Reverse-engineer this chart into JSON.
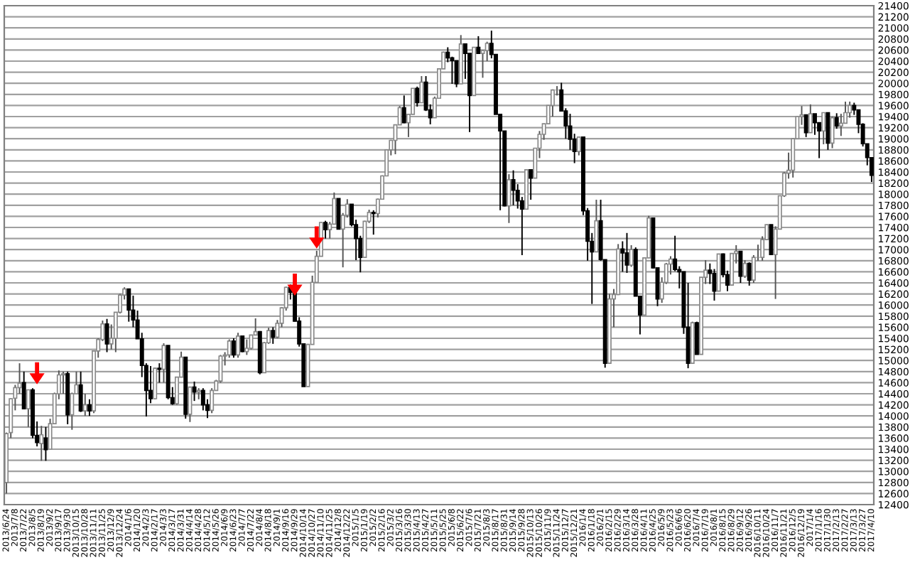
{
  "chart_data": {
    "type": "candlestick",
    "ylim": [
      12400,
      21400
    ],
    "yticks": [
      12400,
      12600,
      12800,
      13000,
      13200,
      13400,
      13600,
      13800,
      14000,
      14200,
      14400,
      14600,
      14800,
      15000,
      15200,
      15400,
      15600,
      15800,
      16000,
      16200,
      16400,
      16600,
      16800,
      17000,
      17200,
      17400,
      17600,
      17800,
      18000,
      18200,
      18400,
      18600,
      18800,
      19000,
      19200,
      19400,
      19600,
      19800,
      20000,
      20200,
      20400,
      20600,
      20800,
      21000,
      21200,
      21400
    ],
    "grid": "y",
    "categories": [
      "2013/6/24",
      null,
      "2013/7/8",
      null,
      "2013/7/22",
      null,
      "2013/8/5",
      null,
      "2013/8/19",
      null,
      "2013/9/2",
      null,
      "2013/9/17",
      null,
      "2013/9/30",
      null,
      "2013/10/15",
      null,
      "2013/10/28",
      null,
      "2013/11/11",
      null,
      "2013/11/25",
      null,
      "2013/12/9",
      null,
      "2013/12/24",
      null,
      "2014/1/6",
      null,
      "2014/1/20",
      null,
      "2014/2/3",
      null,
      "2014/2/17",
      null,
      "2014/3/3",
      null,
      "2014/3/17",
      null,
      "2014/3/31",
      null,
      "2014/4/14",
      null,
      "2014/4/28",
      null,
      "2014/5/12",
      null,
      "2014/5/26",
      null,
      "2014/6/9",
      null,
      "2014/6/23",
      null,
      "2014/7/7",
      null,
      "2014/7/22",
      null,
      "2014/8/4",
      null,
      "2014/8/18",
      null,
      "2014/9/1",
      null,
      "2014/9/16",
      null,
      "2014/9/29",
      null,
      "2014/10/14",
      null,
      "2014/10/27",
      null,
      "2014/11/10",
      null,
      "2014/11/25",
      null,
      "2014/12/8",
      null,
      "2014/12/22",
      null,
      "2015/1/5",
      null,
      "2015/1/19",
      null,
      "2015/2/2",
      null,
      "2015/2/16",
      null,
      "2015/3/2",
      null,
      "2015/3/16",
      null,
      "2015/3/30",
      null,
      "2015/4/13",
      null,
      "2015/4/27",
      null,
      "2015/5/11",
      null,
      "2015/5/25",
      null,
      "2015/6/8",
      null,
      "2015/6/22",
      null,
      "2015/7/6",
      null,
      "2015/7/21",
      null,
      "2015/8/3",
      null,
      "2015/8/17",
      null,
      "2015/8/31",
      null,
      "2015/9/14",
      null,
      "2015/9/28",
      null,
      "2015/10/13",
      null,
      "2015/10/26",
      null,
      "2015/11/9",
      null,
      "2015/11/24",
      null,
      "2015/12/7",
      null,
      "2015/12/21",
      null,
      "2016/1/4",
      null,
      "2016/1/18",
      null,
      "2016/2/1",
      null,
      "2016/2/15",
      null,
      "2016/2/29",
      null,
      "2016/3/14",
      null,
      "2016/3/28",
      null,
      "2016/4/11",
      null,
      "2016/4/25",
      null,
      "2016/5/9",
      null,
      "2016/5/23",
      null,
      "2016/6/6",
      null,
      "2016/6/20",
      null,
      "2016/7/4",
      null,
      "2016/7/19",
      null,
      "2016/8/1",
      null,
      "2016/8/15",
      null,
      "2016/8/29",
      null,
      "2016/9/12",
      null,
      "2016/9/26",
      null,
      "2016/10/11",
      null,
      "2016/10/24",
      null,
      "2016/11/7",
      null,
      "2016/11/21",
      null,
      "2016/12/5",
      null,
      "2016/12/19",
      null,
      "2017/1/4",
      null,
      "2017/1/16",
      null,
      "2017/1/30",
      null,
      "2017/2/13",
      null,
      "2017/2/27",
      null,
      "2017/3/13",
      null,
      "2017/3/27",
      null,
      "2017/4/10"
    ],
    "ohlc": [
      [
        12800,
        13700,
        12600,
        13680
      ],
      [
        13700,
        14320,
        13600,
        14310
      ],
      [
        14320,
        14560,
        14100,
        14510
      ],
      [
        14510,
        14950,
        14400,
        14590
      ],
      [
        14600,
        14800,
        14120,
        14130
      ],
      [
        14130,
        14470,
        13800,
        14470
      ],
      [
        14470,
        14500,
        13600,
        13650
      ],
      [
        13650,
        13900,
        13450,
        13520
      ],
      [
        13500,
        13820,
        13190,
        13660
      ],
      [
        13600,
        13800,
        13190,
        13390
      ],
      [
        13400,
        13950,
        13400,
        13860
      ],
      [
        13860,
        14420,
        13860,
        14400
      ],
      [
        14400,
        14820,
        14300,
        14740
      ],
      [
        14740,
        14800,
        14400,
        14760
      ],
      [
        14760,
        14800,
        13850,
        14020
      ],
      [
        14020,
        14420,
        13750,
        14400
      ],
      [
        14400,
        14800,
        14400,
        14560
      ],
      [
        14560,
        14800,
        14070,
        14090
      ],
      [
        14090,
        14400,
        14000,
        14200
      ],
      [
        14200,
        14300,
        14000,
        14090
      ],
      [
        14090,
        15170,
        14050,
        15170
      ],
      [
        15170,
        15400,
        15050,
        15380
      ],
      [
        15380,
        15720,
        15350,
        15660
      ],
      [
        15660,
        15750,
        15150,
        15300
      ],
      [
        15300,
        15650,
        15200,
        15400
      ],
      [
        15400,
        15870,
        15150,
        15870
      ],
      [
        15870,
        16200,
        15850,
        16180
      ],
      [
        16180,
        16320,
        16100,
        16290
      ],
      [
        16290,
        16290,
        15700,
        15910
      ],
      [
        15910,
        16170,
        15600,
        15730
      ],
      [
        15730,
        15900,
        15390,
        15390
      ],
      [
        15390,
        15500,
        14700,
        14910
      ],
      [
        14910,
        14950,
        13990,
        14460
      ],
      [
        14460,
        14900,
        14230,
        14310
      ],
      [
        14310,
        14870,
        14300,
        14860
      ],
      [
        14860,
        14950,
        14600,
        14840
      ],
      [
        14840,
        15310,
        14600,
        15270
      ],
      [
        15270,
        15270,
        14300,
        14330
      ],
      [
        14330,
        14520,
        14200,
        14220
      ],
      [
        14220,
        14700,
        14200,
        14700
      ],
      [
        14700,
        15160,
        14700,
        15060
      ],
      [
        15060,
        15060,
        13950,
        14030
      ],
      [
        14030,
        14520,
        13890,
        14520
      ],
      [
        14520,
        14620,
        14270,
        14430
      ],
      [
        14430,
        14500,
        14300,
        14460
      ],
      [
        14460,
        14500,
        14100,
        14200
      ],
      [
        14200,
        14300,
        13960,
        14100
      ],
      [
        14100,
        14500,
        14050,
        14460
      ],
      [
        14460,
        14650,
        14460,
        14630
      ],
      [
        14630,
        15100,
        14600,
        15080
      ],
      [
        15080,
        15150,
        14910,
        15100
      ],
      [
        15100,
        15380,
        15050,
        15350
      ],
      [
        15350,
        15400,
        15050,
        15100
      ],
      [
        15100,
        15500,
        15050,
        15440
      ],
      [
        15440,
        15450,
        15150,
        15160
      ],
      [
        15160,
        15380,
        15100,
        15220
      ],
      [
        15220,
        15460,
        15200,
        15460
      ],
      [
        15460,
        15760,
        15460,
        15520
      ],
      [
        15520,
        15530,
        14750,
        14780
      ],
      [
        14780,
        15330,
        14780,
        15320
      ],
      [
        15320,
        15590,
        15300,
        15540
      ],
      [
        15540,
        15600,
        15300,
        15420
      ],
      [
        15420,
        15730,
        15400,
        15670
      ],
      [
        15670,
        15960,
        15600,
        15950
      ],
      [
        15950,
        16330,
        15900,
        16320
      ],
      [
        16320,
        16370,
        16100,
        16230
      ],
      [
        16230,
        16230,
        15700,
        15710
      ],
      [
        15710,
        15780,
        15250,
        15300
      ],
      [
        15300,
        15300,
        14530,
        14530
      ],
      [
        14530,
        15300,
        14530,
        15290
      ],
      [
        15290,
        16530,
        15290,
        16410
      ],
      [
        16410,
        16980,
        16400,
        16880
      ],
      [
        16880,
        17500,
        16880,
        17490
      ],
      [
        17490,
        17520,
        17200,
        17360
      ],
      [
        17360,
        17500,
        17200,
        17460
      ],
      [
        17460,
        18030,
        17460,
        17920
      ],
      [
        17920,
        17920,
        17370,
        17370
      ],
      [
        17370,
        17660,
        16680,
        17620
      ],
      [
        17620,
        17910,
        17580,
        17820
      ],
      [
        17820,
        17820,
        17420,
        17450
      ],
      [
        17450,
        17540,
        16810,
        17200
      ],
      [
        17200,
        17250,
        16590,
        16860
      ],
      [
        16860,
        17520,
        16860,
        17510
      ],
      [
        17510,
        17720,
        17480,
        17670
      ],
      [
        17670,
        17710,
        17270,
        17650
      ],
      [
        17650,
        17920,
        17580,
        17910
      ],
      [
        17910,
        18340,
        17910,
        18330
      ],
      [
        18330,
        18800,
        18330,
        18800
      ],
      [
        18800,
        18980,
        18700,
        18970
      ],
      [
        18970,
        19250,
        18720,
        19250
      ],
      [
        19250,
        19590,
        19250,
        19560
      ],
      [
        19560,
        19780,
        19280,
        19290
      ],
      [
        19290,
        19440,
        19030,
        19440
      ],
      [
        19440,
        19910,
        19440,
        19910
      ],
      [
        19910,
        19940,
        19580,
        19650
      ],
      [
        19650,
        20130,
        19650,
        20020
      ],
      [
        20020,
        20130,
        19500,
        19520
      ],
      [
        19520,
        19620,
        19260,
        19380
      ],
      [
        19380,
        19760,
        19380,
        19730
      ],
      [
        19730,
        20270,
        19730,
        20260
      ],
      [
        20260,
        20570,
        20260,
        20560
      ],
      [
        20560,
        20650,
        20380,
        20460
      ],
      [
        20460,
        20480,
        19990,
        20410
      ],
      [
        20410,
        20410,
        19930,
        19990
      ],
      [
        19990,
        20870,
        19990,
        20710
      ],
      [
        20710,
        20710,
        20080,
        20540
      ],
      [
        20540,
        20540,
        19120,
        19780
      ],
      [
        19780,
        20650,
        19780,
        20650
      ],
      [
        20650,
        20850,
        20540,
        20540
      ],
      [
        20540,
        20590,
        20100,
        20590
      ],
      [
        20590,
        20750,
        20400,
        20720
      ],
      [
        20720,
        20950,
        20450,
        20520
      ],
      [
        20520,
        20520,
        19440,
        19440
      ],
      [
        19440,
        19440,
        17710,
        19140
      ],
      [
        19140,
        19140,
        17780,
        17790
      ],
      [
        17790,
        18360,
        17480,
        18260
      ],
      [
        18260,
        18430,
        17800,
        18070
      ],
      [
        18070,
        18180,
        17740,
        17880
      ],
      [
        17880,
        17950,
        16900,
        17730
      ],
      [
        17730,
        18440,
        17730,
        18440
      ],
      [
        18440,
        18450,
        17900,
        18290
      ],
      [
        18290,
        18830,
        18290,
        18830
      ],
      [
        18830,
        19140,
        18650,
        19080
      ],
      [
        19080,
        19270,
        18980,
        19270
      ],
      [
        19270,
        19600,
        19270,
        19600
      ],
      [
        19600,
        19890,
        19400,
        19880
      ],
      [
        19880,
        19950,
        19780,
        19880
      ],
      [
        19880,
        20010,
        19500,
        19500
      ],
      [
        19500,
        19550,
        19000,
        19230
      ],
      [
        19230,
        19450,
        18800,
        18990
      ],
      [
        18990,
        19090,
        18560,
        18770
      ],
      [
        18770,
        19040,
        18700,
        19030
      ],
      [
        19030,
        19030,
        17620,
        17700
      ],
      [
        17700,
        17750,
        16800,
        17150
      ],
      [
        17150,
        17300,
        16020,
        16960
      ],
      [
        16960,
        17900,
        16960,
        17520
      ],
      [
        17520,
        17900,
        16800,
        16820
      ],
      [
        16820,
        16820,
        14870,
        14950
      ],
      [
        14950,
        16200,
        14950,
        16110
      ],
      [
        16110,
        16290,
        15600,
        16190
      ],
      [
        16190,
        17100,
        16180,
        17010
      ],
      [
        17010,
        17150,
        16600,
        16940
      ],
      [
        16940,
        17300,
        16580,
        16720
      ],
      [
        16720,
        17080,
        16690,
        17000
      ],
      [
        17000,
        17040,
        16160,
        16160
      ],
      [
        16160,
        16160,
        15470,
        15820
      ],
      [
        15820,
        16850,
        15820,
        16850
      ],
      [
        16850,
        17610,
        16850,
        17570
      ],
      [
        17570,
        17570,
        16660,
        16670
      ],
      [
        16670,
        16670,
        15980,
        16110
      ],
      [
        16110,
        16500,
        16040,
        16410
      ],
      [
        16410,
        16760,
        16380,
        16740
      ],
      [
        16740,
        16880,
        16550,
        16830
      ],
      [
        16830,
        17250,
        16610,
        16640
      ],
      [
        16640,
        16700,
        16300,
        16600
      ],
      [
        16600,
        16600,
        15480,
        15600
      ],
      [
        15600,
        16400,
        14860,
        14950
      ],
      [
        14950,
        15700,
        14950,
        15680
      ],
      [
        15680,
        15700,
        15110,
        15110
      ],
      [
        15110,
        16500,
        15110,
        16500
      ],
      [
        16500,
        16810,
        16380,
        16630
      ],
      [
        16630,
        16750,
        16380,
        16570
      ],
      [
        16570,
        16650,
        16080,
        16250
      ],
      [
        16250,
        16920,
        16250,
        16920
      ],
      [
        16920,
        16930,
        16500,
        16550
      ],
      [
        16550,
        16620,
        16250,
        16360
      ],
      [
        16360,
        16930,
        16360,
        16930
      ],
      [
        16930,
        17080,
        16750,
        16970
      ],
      [
        16970,
        16970,
        16400,
        16520
      ],
      [
        16520,
        16810,
        16490,
        16750
      ],
      [
        16750,
        16770,
        16350,
        16450
      ],
      [
        16450,
        16900,
        16400,
        16860
      ],
      [
        16860,
        17090,
        16800,
        16860
      ],
      [
        16860,
        17240,
        16800,
        17180
      ],
      [
        17180,
        17450,
        17180,
        17450
      ],
      [
        17450,
        17450,
        16900,
        16910
      ],
      [
        16910,
        17420,
        16110,
        17370
      ],
      [
        17370,
        17970,
        17370,
        17970
      ],
      [
        17970,
        18400,
        17950,
        18380
      ],
      [
        18380,
        18750,
        18280,
        18430
      ],
      [
        18430,
        19000,
        18300,
        19000
      ],
      [
        19000,
        19410,
        19000,
        19400
      ],
      [
        19400,
        19590,
        19250,
        19430
      ],
      [
        19430,
        19430,
        19030,
        19110
      ],
      [
        19110,
        19620,
        19110,
        19450
      ],
      [
        19450,
        19450,
        19070,
        19290
      ],
      [
        19290,
        19290,
        18650,
        19140
      ],
      [
        19140,
        19470,
        18900,
        19470
      ],
      [
        19470,
        19470,
        18800,
        18920
      ],
      [
        18920,
        19400,
        18830,
        19380
      ],
      [
        19380,
        19460,
        19180,
        19230
      ],
      [
        19230,
        19450,
        19050,
        19280
      ],
      [
        19280,
        19670,
        19280,
        19470
      ],
      [
        19470,
        19670,
        19380,
        19600
      ],
      [
        19600,
        19650,
        19430,
        19520
      ],
      [
        19520,
        19520,
        19100,
        19260
      ],
      [
        19260,
        19280,
        18860,
        18910
      ],
      [
        18910,
        18910,
        18520,
        18660
      ],
      [
        18660,
        18660,
        18220,
        18340
      ]
    ]
  }
}
